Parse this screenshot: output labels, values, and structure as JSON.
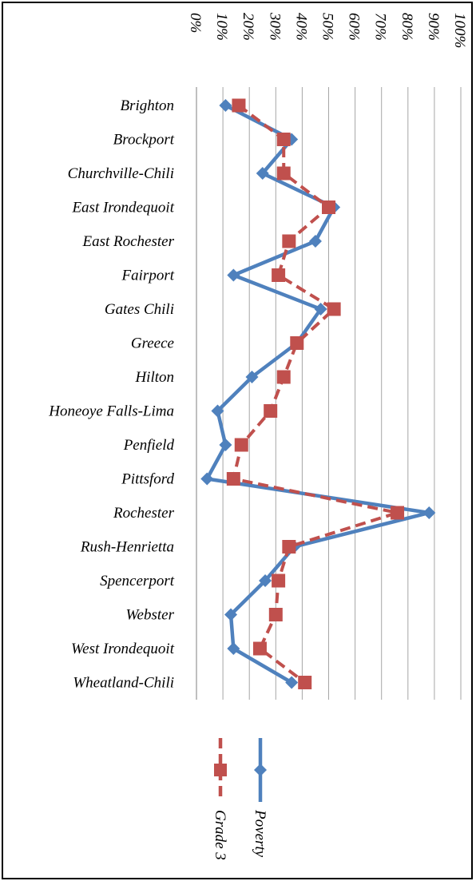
{
  "chart_data": {
    "type": "line",
    "title": "",
    "xlabel": "",
    "ylabel": "",
    "orientation": "rotated-90-clockwise",
    "value_axis": {
      "min": 0,
      "max": 100,
      "step": 10,
      "tick_format": "percent"
    },
    "tick_labels": [
      "0%",
      "10%",
      "20%",
      "30%",
      "40%",
      "50%",
      "60%",
      "70%",
      "80%",
      "90%",
      "100%"
    ],
    "grid": true,
    "legend_position": "bottom",
    "categories": [
      "Brighton",
      "Brockport",
      "Churchville-Chili",
      "East Irondequoit",
      "East Rochester",
      "Fairport",
      "Gates Chili",
      "Greece",
      "Hilton",
      "Honeoye Falls-Lima",
      "Penfield",
      "Pittsford",
      "Rochester",
      "Rush-Henrietta",
      "Spencerport",
      "Webster",
      "West Irondequoit",
      "Wheatland-Chili"
    ],
    "series": [
      {
        "name": "Poverty",
        "color": "#4f81bd",
        "line_style": "solid",
        "marker": "diamond",
        "values": [
          11,
          36,
          25,
          52,
          45,
          14,
          47,
          38,
          21,
          8,
          11,
          4,
          88,
          37,
          26,
          13,
          14,
          36
        ]
      },
      {
        "name": "Grade 3",
        "color": "#c0504d",
        "line_style": "dashed",
        "marker": "square",
        "values": [
          16,
          33,
          33,
          50,
          35,
          31,
          52,
          38,
          33,
          28,
          17,
          14,
          76,
          35,
          31,
          30,
          24,
          41
        ]
      }
    ]
  }
}
